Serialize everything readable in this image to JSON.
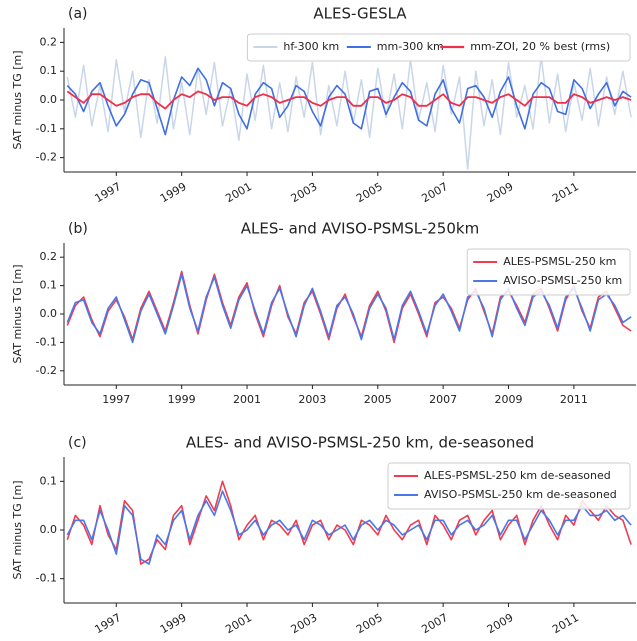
{
  "chart_data": [
    {
      "type": "line",
      "panel_label": "(a)",
      "title": "ALES-GESLA",
      "ylabel": "SAT minus TG [m]",
      "x": [
        1995.5,
        1995.75,
        1996,
        1996.25,
        1996.5,
        1996.75,
        1997,
        1997.25,
        1997.5,
        1997.75,
        1998,
        1998.25,
        1998.5,
        1998.75,
        1999,
        1999.25,
        1999.5,
        1999.75,
        2000,
        2000.25,
        2000.5,
        2000.75,
        2001,
        2001.25,
        2001.5,
        2001.75,
        2002,
        2002.25,
        2002.5,
        2002.75,
        2003,
        2003.25,
        2003.5,
        2003.75,
        2004,
        2004.25,
        2004.5,
        2004.75,
        2005,
        2005.25,
        2005.5,
        2005.75,
        2006,
        2006.25,
        2006.5,
        2006.75,
        2007,
        2007.25,
        2007.5,
        2007.75,
        2008,
        2008.25,
        2008.5,
        2008.75,
        2009,
        2009.25,
        2009.5,
        2009.75,
        2010,
        2010.25,
        2010.5,
        2010.75,
        2011,
        2011.25,
        2011.5,
        2011.75,
        2012,
        2012.25,
        2012.5,
        2012.75
      ],
      "series": [
        {
          "name": "hf-300 km",
          "color": "#c9d6ea",
          "width": 1.5,
          "values": [
            0.08,
            -0.06,
            0.12,
            -0.09,
            0.05,
            -0.11,
            0.14,
            -0.04,
            0.1,
            -0.13,
            0.07,
            -0.08,
            0.15,
            -0.1,
            0.06,
            -0.12,
            0.11,
            -0.05,
            0.13,
            -0.09,
            0.04,
            -0.14,
            0.09,
            -0.07,
            0.12,
            -0.1,
            0.06,
            -0.11,
            0.08,
            -0.06,
            0.13,
            -0.12,
            0.05,
            -0.09,
            0.1,
            -0.08,
            0.07,
            -0.13,
            0.11,
            -0.06,
            0.09,
            -0.1,
            0.14,
            -0.07,
            0.06,
            -0.11,
            0.12,
            -0.05,
            0.08,
            -0.24,
            0.1,
            -0.09,
            0.07,
            -0.12,
            0.13,
            -0.06,
            0.05,
            -0.1,
            0.15,
            -0.08,
            0.09,
            -0.11,
            0.06,
            -0.07,
            0.11,
            -0.09,
            0.08,
            -0.05,
            0.1,
            -0.06
          ]
        },
        {
          "name": "mm-300 km",
          "color": "#3f6fe0",
          "width": 1.6,
          "values": [
            0.05,
            0.02,
            -0.04,
            0.03,
            0.06,
            -0.02,
            -0.09,
            -0.05,
            0.02,
            0.07,
            0.06,
            -0.03,
            -0.12,
            0.0,
            0.08,
            0.05,
            0.11,
            0.07,
            -0.02,
            0.06,
            0.04,
            -0.05,
            -0.1,
            0.02,
            0.06,
            0.04,
            -0.06,
            -0.02,
            0.05,
            0.03,
            -0.04,
            -0.09,
            0.01,
            0.05,
            0.02,
            -0.08,
            -0.1,
            0.03,
            0.04,
            -0.05,
            0.01,
            0.06,
            0.03,
            -0.07,
            -0.09,
            0.02,
            0.07,
            -0.03,
            -0.08,
            0.04,
            0.05,
            0.01,
            -0.06,
            0.03,
            0.08,
            -0.02,
            -0.1,
            0.02,
            0.06,
            0.04,
            -0.04,
            -0.05,
            0.07,
            0.04,
            -0.03,
            0.02,
            0.06,
            -0.02,
            0.03,
            0.01
          ]
        },
        {
          "name": "mm-ZOI, 20 % best (rms)",
          "color": "#f0304a",
          "width": 1.8,
          "values": [
            0.03,
            0.01,
            -0.01,
            0.02,
            0.02,
            0.0,
            -0.02,
            -0.01,
            0.01,
            0.02,
            0.02,
            -0.01,
            -0.03,
            0.0,
            0.02,
            0.01,
            0.03,
            0.02,
            0.0,
            0.01,
            0.01,
            -0.01,
            -0.02,
            0.01,
            0.02,
            0.01,
            -0.01,
            0.0,
            0.01,
            0.01,
            -0.01,
            -0.02,
            0.0,
            0.01,
            0.01,
            -0.02,
            -0.02,
            0.01,
            0.01,
            -0.01,
            0.0,
            0.02,
            0.01,
            -0.02,
            -0.02,
            0.0,
            0.02,
            -0.01,
            -0.02,
            0.01,
            0.01,
            0.0,
            -0.01,
            0.01,
            0.02,
            0.0,
            -0.02,
            0.01,
            0.01,
            0.01,
            -0.01,
            -0.01,
            0.02,
            0.01,
            -0.01,
            0.0,
            0.01,
            0.0,
            0.01,
            0.0
          ]
        }
      ],
      "xlim": [
        1995.4,
        2012.9
      ],
      "xticks": [
        1997,
        1999,
        2001,
        2003,
        2005,
        2007,
        2009,
        2011
      ],
      "xtick_rotation": 30,
      "ylim": [
        -0.25,
        0.25
      ],
      "yticks": [
        -0.2,
        -0.1,
        {
          "value": 0,
          "label": "0.0"
        },
        0.1,
        0.2
      ],
      "legend": "upper right",
      "legend_columns": 3
    },
    {
      "type": "line",
      "panel_label": "(b)",
      "title": "ALES- and AVISO-PSMSL-250km",
      "ylabel": "SAT minus TG [m]",
      "x": [
        1995.5,
        1995.75,
        1996,
        1996.25,
        1996.5,
        1996.75,
        1997,
        1997.25,
        1997.5,
        1997.75,
        1998,
        1998.25,
        1998.5,
        1998.75,
        1999,
        1999.25,
        1999.5,
        1999.75,
        2000,
        2000.25,
        2000.5,
        2000.75,
        2001,
        2001.25,
        2001.5,
        2001.75,
        2002,
        2002.25,
        2002.5,
        2002.75,
        2003,
        2003.25,
        2003.5,
        2003.75,
        2004,
        2004.25,
        2004.5,
        2004.75,
        2005,
        2005.25,
        2005.5,
        2005.75,
        2006,
        2006.25,
        2006.5,
        2006.75,
        2007,
        2007.25,
        2007.5,
        2007.75,
        2008,
        2008.25,
        2008.5,
        2008.75,
        2009,
        2009.25,
        2009.5,
        2009.75,
        2010,
        2010.25,
        2010.5,
        2010.75,
        2011,
        2011.25,
        2011.5,
        2011.75,
        2012,
        2012.25,
        2012.5,
        2012.75
      ],
      "series": [
        {
          "name": "ALES-PSMSL-250 km",
          "color": "#f03c50",
          "width": 1.6,
          "values": [
            -0.04,
            0.03,
            0.06,
            -0.02,
            -0.08,
            0.01,
            0.05,
            -0.01,
            -0.09,
            0.02,
            0.08,
            0.01,
            -0.06,
            0.04,
            0.15,
            0.03,
            -0.07,
            0.05,
            0.14,
            0.04,
            -0.04,
            0.06,
            0.11,
            0.0,
            -0.08,
            0.03,
            0.1,
            -0.01,
            -0.07,
            0.04,
            0.08,
            0.0,
            -0.09,
            0.02,
            0.07,
            -0.01,
            -0.08,
            0.03,
            0.08,
            0.01,
            -0.1,
            0.02,
            0.07,
            0.0,
            -0.08,
            0.04,
            0.06,
            0.02,
            -0.05,
            0.05,
            0.09,
            0.01,
            -0.07,
            0.06,
            0.08,
            0.03,
            -0.03,
            0.07,
            0.09,
            0.02,
            -0.06,
            0.05,
            0.1,
            0.01,
            -0.05,
            0.06,
            0.08,
            0.02,
            -0.04,
            -0.06
          ]
        },
        {
          "name": "AVISO-PSMSL-250 km",
          "color": "#4a78e8",
          "width": 1.6,
          "values": [
            -0.03,
            0.04,
            0.05,
            -0.03,
            -0.07,
            0.02,
            0.06,
            -0.02,
            -0.1,
            0.01,
            0.07,
            0.0,
            -0.07,
            0.03,
            0.14,
            0.02,
            -0.06,
            0.06,
            0.13,
            0.03,
            -0.05,
            0.05,
            0.1,
            0.01,
            -0.07,
            0.04,
            0.09,
            0.0,
            -0.08,
            0.03,
            0.09,
            0.01,
            -0.08,
            0.03,
            0.06,
            0.0,
            -0.09,
            0.02,
            0.07,
            0.02,
            -0.09,
            0.03,
            0.08,
            0.01,
            -0.07,
            0.03,
            0.07,
            0.01,
            -0.06,
            0.06,
            0.08,
            0.02,
            -0.08,
            0.05,
            0.09,
            0.02,
            -0.04,
            0.06,
            0.08,
            0.03,
            -0.05,
            0.06,
            0.09,
            0.02,
            -0.06,
            0.05,
            0.07,
            0.03,
            -0.03,
            -0.01
          ]
        }
      ],
      "xlim": [
        1995.4,
        2012.9
      ],
      "xticks": [
        1997,
        1999,
        2001,
        2003,
        2005,
        2007,
        2009,
        2011
      ],
      "xtick_rotation": 0,
      "ylim": [
        -0.25,
        0.25
      ],
      "yticks": [
        -0.2,
        -0.1,
        {
          "value": 0,
          "label": "0.0"
        },
        0.1,
        0.2
      ],
      "legend": "upper right",
      "legend_columns": 1
    },
    {
      "type": "line",
      "panel_label": "(c)",
      "title": "ALES- and AVISO-PSMSL-250 km, de-seasoned",
      "ylabel": "SAT minus TG [m]",
      "x": [
        1995.5,
        1995.75,
        1996,
        1996.25,
        1996.5,
        1996.75,
        1997,
        1997.25,
        1997.5,
        1997.75,
        1998,
        1998.25,
        1998.5,
        1998.75,
        1999,
        1999.25,
        1999.5,
        1999.75,
        2000,
        2000.25,
        2000.5,
        2000.75,
        2001,
        2001.25,
        2001.5,
        2001.75,
        2002,
        2002.25,
        2002.5,
        2002.75,
        2003,
        2003.25,
        2003.5,
        2003.75,
        2004,
        2004.25,
        2004.5,
        2004.75,
        2005,
        2005.25,
        2005.5,
        2005.75,
        2006,
        2006.25,
        2006.5,
        2006.75,
        2007,
        2007.25,
        2007.5,
        2007.75,
        2008,
        2008.25,
        2008.5,
        2008.75,
        2009,
        2009.25,
        2009.5,
        2009.75,
        2010,
        2010.25,
        2010.5,
        2010.75,
        2011,
        2011.25,
        2011.5,
        2011.75,
        2012,
        2012.25,
        2012.5,
        2012.75
      ],
      "series": [
        {
          "name": "ALES-PSMSL-250 km de-seasoned",
          "color": "#f03c50",
          "width": 1.6,
          "values": [
            -0.02,
            0.03,
            0.01,
            -0.03,
            0.05,
            -0.01,
            -0.04,
            0.06,
            0.04,
            -0.07,
            -0.06,
            -0.02,
            -0.04,
            0.03,
            0.05,
            -0.03,
            0.02,
            0.07,
            0.04,
            0.1,
            0.05,
            -0.02,
            0.01,
            0.03,
            -0.02,
            0.02,
            0.01,
            -0.01,
            0.02,
            -0.03,
            0.01,
            0.02,
            -0.02,
            0.01,
            0.0,
            -0.03,
            0.02,
            0.01,
            -0.01,
            0.03,
            0.0,
            -0.02,
            0.01,
            0.02,
            -0.03,
            0.03,
            0.01,
            -0.02,
            0.02,
            0.03,
            -0.01,
            0.02,
            0.04,
            -0.02,
            0.01,
            0.03,
            -0.03,
            0.02,
            0.05,
            0.01,
            -0.02,
            0.03,
            0.01,
            0.06,
            0.04,
            0.02,
            0.05,
            0.03,
            0.02,
            -0.03
          ]
        },
        {
          "name": "AVISO-PSMSL-250 km de-seasoned",
          "color": "#4a78e8",
          "width": 1.6,
          "values": [
            -0.01,
            0.02,
            0.02,
            -0.02,
            0.04,
            0.0,
            -0.05,
            0.05,
            0.03,
            -0.06,
            -0.07,
            -0.01,
            -0.03,
            0.02,
            0.04,
            -0.02,
            0.03,
            0.06,
            0.03,
            0.08,
            0.04,
            -0.01,
            0.0,
            0.02,
            -0.01,
            0.01,
            0.02,
            0.0,
            0.01,
            -0.02,
            0.02,
            0.01,
            -0.01,
            0.0,
            0.01,
            -0.02,
            0.01,
            0.02,
            0.0,
            0.02,
            0.01,
            -0.01,
            0.0,
            0.01,
            -0.02,
            0.02,
            0.02,
            -0.01,
            0.01,
            0.02,
            0.0,
            0.01,
            0.03,
            -0.01,
            0.02,
            0.02,
            -0.02,
            0.01,
            0.04,
            0.02,
            -0.01,
            0.02,
            0.02,
            0.05,
            0.03,
            0.03,
            0.04,
            0.02,
            0.03,
            0.01
          ]
        }
      ],
      "xlim": [
        1995.4,
        2012.9
      ],
      "xticks": [
        1997,
        1999,
        2001,
        2003,
        2005,
        2007,
        2009,
        2011
      ],
      "xtick_rotation": 30,
      "ylim": [
        -0.15,
        0.15
      ],
      "yticks": [
        -0.1,
        {
          "value": 0,
          "label": "0.0"
        },
        0.1
      ],
      "legend": "upper right",
      "legend_columns": 1
    }
  ]
}
